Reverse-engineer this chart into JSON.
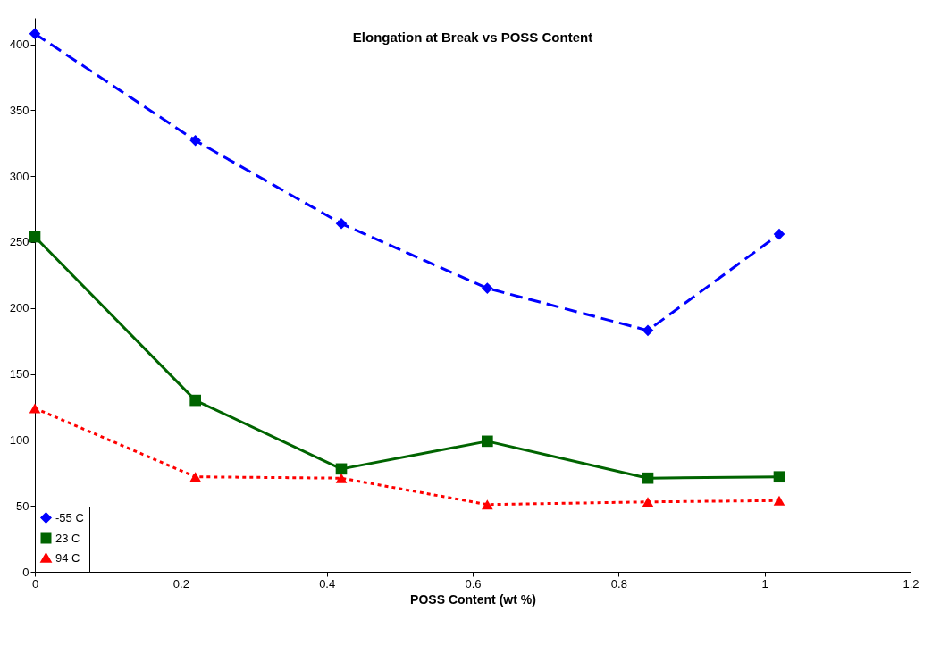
{
  "chart_data": {
    "type": "line",
    "title": "Elongation at Break vs POSS Content",
    "xlabel": "POSS Content (wt %)",
    "x": [
      0,
      0.22,
      0.42,
      0.62,
      0.84,
      1.02
    ],
    "series": [
      {
        "name": "-55 C",
        "color": "#0000ff",
        "marker": "diamond",
        "line_style": "dashed",
        "values": [
          408,
          327,
          264,
          215,
          183,
          256
        ]
      },
      {
        "name": "23 C",
        "color": "#006400",
        "marker": "square",
        "line_style": "solid",
        "values": [
          254,
          130,
          78,
          99,
          71,
          72
        ]
      },
      {
        "name": "94 C",
        "color": "#ff0000",
        "marker": "triangle",
        "line_style": "dotted",
        "values": [
          124,
          72,
          71,
          51,
          53,
          54
        ]
      }
    ],
    "xlim": [
      0,
      1.2
    ],
    "xticks": [
      0,
      0.2,
      0.4,
      0.6,
      0.8,
      1,
      1.2
    ],
    "ylim": [
      0,
      420
    ],
    "yticks": [
      0,
      50,
      100,
      150,
      200,
      250,
      300,
      350,
      400
    ],
    "grid": false,
    "legend": "bottom left"
  }
}
